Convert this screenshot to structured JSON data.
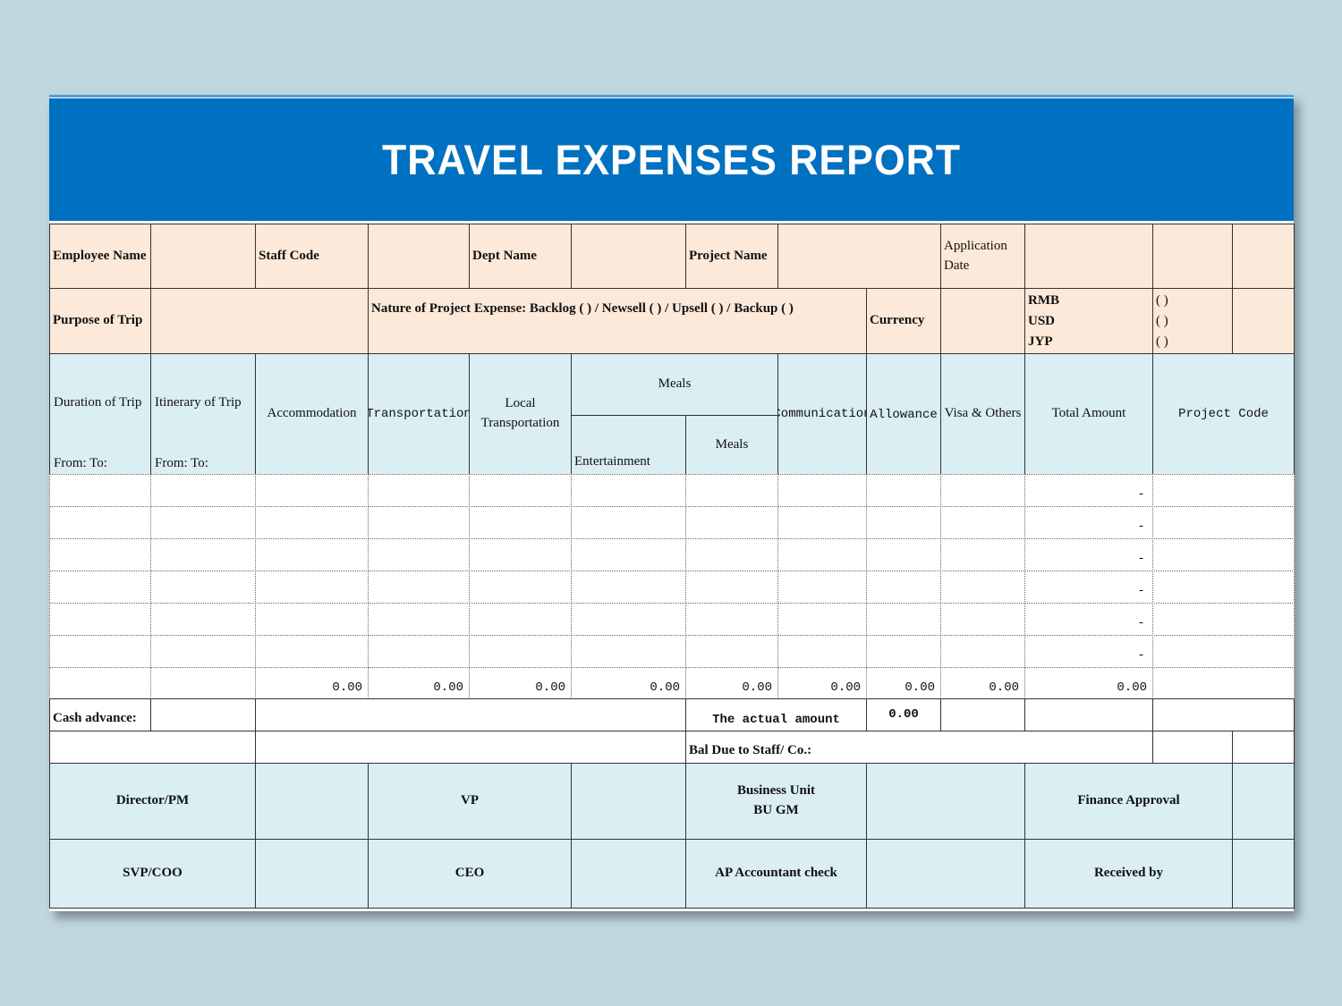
{
  "header": {
    "title": "TRAVEL EXPENSES REPORT"
  },
  "info": {
    "employee_name": "Employee Name",
    "staff_code": "Staff Code",
    "dept_name": "Dept Name",
    "project_name": "Project Name",
    "application_date": "Application Date",
    "purpose_of_trip": "Purpose of Trip",
    "nature": "Nature of Project Expense:  Backlog (      )  /  Newsell (      )  / Upsell  (    )    / Backup (    )",
    "currency": "Currency",
    "currencies": [
      "RMB",
      "USD",
      "JYP"
    ],
    "brackets": [
      "(    )",
      "(    )",
      "(    )"
    ]
  },
  "table": {
    "duration": "Duration of Trip",
    "itinerary": "Itinerary of Trip",
    "from_to": [
      "From:   To:",
      "From:   To:"
    ],
    "accommodation": "Accommodation",
    "transportation": "Transportation",
    "local_transportation": "Local Transportation",
    "meals_group": "Meals",
    "entertainment": "Entertainment",
    "meals": "Meals",
    "communication": "Communication",
    "allowance": "Allowance",
    "visa_others": "Visa & Others",
    "total_amount": "Total Amount",
    "project_code": "Project Code",
    "row_totals": [
      "-",
      "-",
      "-",
      "-",
      "-",
      "-"
    ],
    "column_totals": [
      "0.00",
      "0.00",
      "0.00",
      "0.00",
      "0.00",
      "0.00",
      "0.00",
      "0.00",
      "0.00"
    ]
  },
  "summary": {
    "cash_advance": "Cash advance:",
    "actual_amount": "The actual amount",
    "actual_value": "0.00",
    "bal_due": "Bal Due to Staff/ Co.:"
  },
  "approvals": [
    "Director/PM",
    "VP",
    "Business Unit\nBU GM",
    "Finance Approval",
    "SVP/COO",
    "CEO",
    "AP Accountant check",
    "Received by"
  ]
}
